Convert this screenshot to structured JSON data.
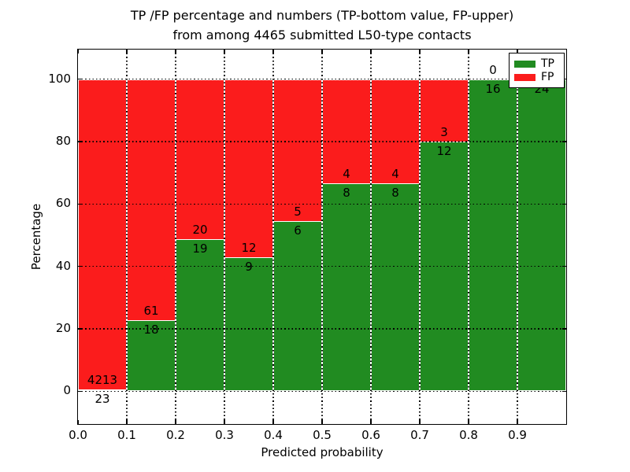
{
  "figure": {
    "title_line1": "TP /FP percentage and numbers (TP-bottom value, FP-upper)",
    "title_line2": "from among 4465 submitted L50-type contacts"
  },
  "chart_data": {
    "type": "bar",
    "stacked": true,
    "title": "TP /FP percentage and numbers (TP-bottom value, FP-upper)\nfrom among 4465 submitted L50-type contacts",
    "xlabel": "Predicted probability",
    "ylabel": "Percentage",
    "xlim": [
      0.0,
      1.0
    ],
    "ylim": [
      -10.5,
      109.5
    ],
    "xticks": [
      0.0,
      0.1,
      0.2,
      0.3,
      0.4,
      0.5,
      0.6,
      0.7,
      0.8,
      0.9
    ],
    "xtick_labels": [
      "0.0",
      "0.1",
      "0.2",
      "0.3",
      "0.4",
      "0.5",
      "0.6",
      "0.7",
      "0.8",
      "0.9"
    ],
    "yticks": [
      0,
      20,
      40,
      60,
      80,
      100
    ],
    "ytick_labels": [
      "0",
      "20",
      "40",
      "60",
      "80",
      "100"
    ],
    "grid": true,
    "total_contacts": 4465,
    "colors": {
      "tp": "#218b21",
      "fp": "#fb1c1c"
    },
    "legend_position": "upper right",
    "legend": [
      {
        "label": "TP",
        "color": "#218b21"
      },
      {
        "label": "FP",
        "color": "#fb1c1c"
      }
    ],
    "bins": [
      {
        "x0": 0.0,
        "x1": 0.1,
        "tp": 23,
        "fp": 4213,
        "tp_pct": 0.54
      },
      {
        "x0": 0.1,
        "x1": 0.2,
        "tp": 18,
        "fp": 61,
        "tp_pct": 22.78
      },
      {
        "x0": 0.2,
        "x1": 0.3,
        "tp": 19,
        "fp": 20,
        "tp_pct": 48.72
      },
      {
        "x0": 0.3,
        "x1": 0.4,
        "tp": 9,
        "fp": 12,
        "tp_pct": 42.86
      },
      {
        "x0": 0.4,
        "x1": 0.5,
        "tp": 6,
        "fp": 5,
        "tp_pct": 54.55
      },
      {
        "x0": 0.5,
        "x1": 0.6,
        "tp": 8,
        "fp": 4,
        "tp_pct": 66.67
      },
      {
        "x0": 0.6,
        "x1": 0.7,
        "tp": 8,
        "fp": 4,
        "tp_pct": 66.67
      },
      {
        "x0": 0.7,
        "x1": 0.8,
        "tp": 12,
        "fp": 3,
        "tp_pct": 80.0
      },
      {
        "x0": 0.8,
        "x1": 0.9,
        "tp": 16,
        "fp": 0,
        "tp_pct": 100.0
      },
      {
        "x0": 0.9,
        "x1": 1.0,
        "tp": 24,
        "fp": 0,
        "tp_pct": 100.0
      }
    ]
  }
}
